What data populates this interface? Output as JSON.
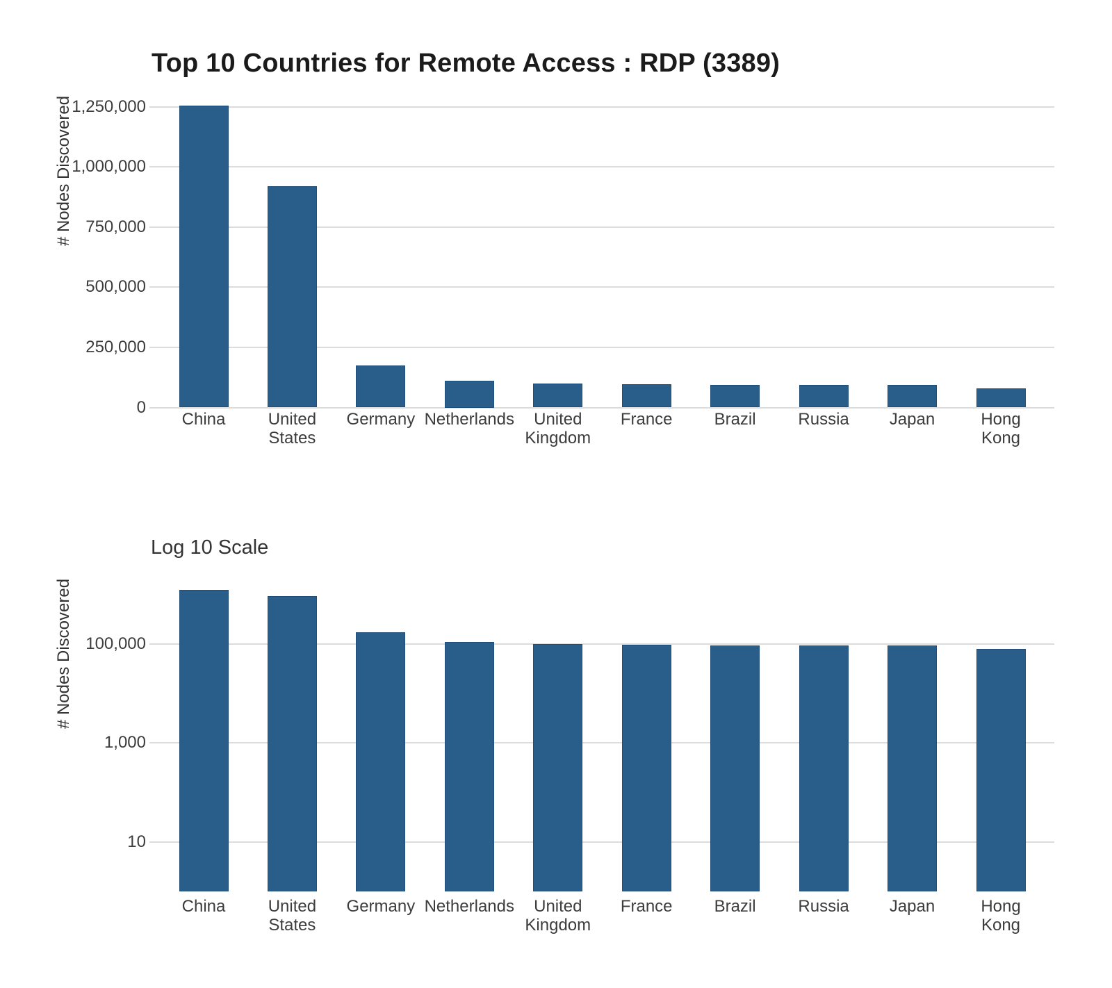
{
  "chart_data": [
    {
      "type": "bar",
      "title": "Top 10 Countries for Remote Access : RDP (3389)",
      "ylabel": "# Nodes Discovered",
      "scale": "linear",
      "categories": [
        "China",
        "United\nStates",
        "Germany",
        "Netherlands",
        "United\nKingdom",
        "France",
        "Brazil",
        "Russia",
        "Japan",
        "Hong\nKong"
      ],
      "values": [
        1254000,
        920000,
        175000,
        111000,
        99000,
        97000,
        95000,
        94000,
        93000,
        80000
      ],
      "yticks": [
        {
          "value": 0,
          "label": "0"
        },
        {
          "value": 250000,
          "label": "250,000"
        },
        {
          "value": 500000,
          "label": "500,000"
        },
        {
          "value": 750000,
          "label": "750,000"
        },
        {
          "value": 1000000,
          "label": "1,000,000"
        },
        {
          "value": 1250000,
          "label": "1,250,000"
        }
      ],
      "ylim": [
        0,
        1300000
      ],
      "grid": true,
      "legend": false
    },
    {
      "type": "bar",
      "title": "Log 10 Scale",
      "ylabel": "# Nodes Discovered",
      "scale": "log10",
      "categories": [
        "China",
        "United\nStates",
        "Germany",
        "Netherlands",
        "United\nKingdom",
        "France",
        "Brazil",
        "Russia",
        "Japan",
        "Hong\nKong"
      ],
      "values": [
        1254000,
        920000,
        175000,
        111000,
        99000,
        97000,
        95000,
        94000,
        93000,
        80000
      ],
      "yticks": [
        {
          "value": 10,
          "label": "10"
        },
        {
          "value": 1000,
          "label": "1,000"
        },
        {
          "value": 100000,
          "label": "100,000"
        }
      ],
      "ylim": [
        1,
        1300000
      ],
      "grid": true,
      "legend": false
    }
  ],
  "colors": {
    "bar": "#2a5e8a",
    "bar_border": "#1f4e79",
    "gridline": "#dcdcdc",
    "tick_text": "#3d3d3d",
    "title_text": "#1b1b1b",
    "axis_text": "#333333"
  }
}
